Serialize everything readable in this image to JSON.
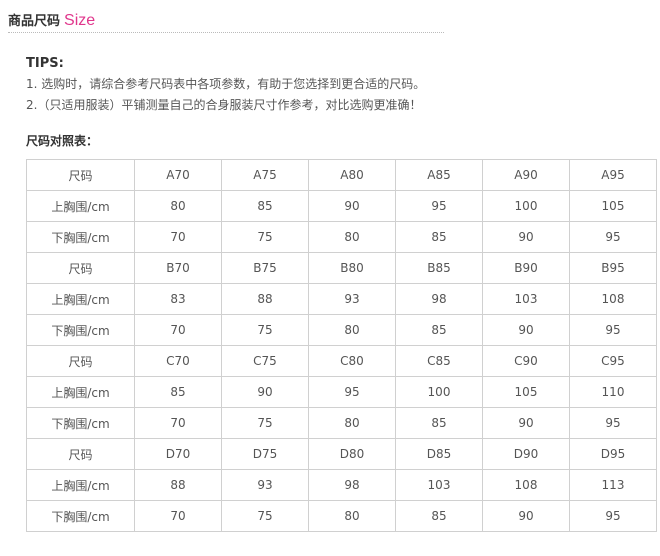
{
  "header": {
    "title_cn": "商品尺码",
    "title_en": "Size",
    "accent": "#e0368c"
  },
  "tips": {
    "title": "TIPS:",
    "lines": [
      "1. 选购时，请综合参考尺码表中各项参数，有助于您选择到更合适的尺码。",
      "2.（只适用服装）平铺测量自己的合身服装尺寸作参考，对比选购更准确！"
    ]
  },
  "table_title": "尺码对照表：",
  "table": [
    [
      "尺码",
      "A70",
      "A75",
      "A80",
      "A85",
      "A90",
      "A95"
    ],
    [
      "上胸围/cm",
      "80",
      "85",
      "90",
      "95",
      "100",
      "105"
    ],
    [
      "下胸围/cm",
      "70",
      "75",
      "80",
      "85",
      "90",
      "95"
    ],
    [
      "尺码",
      "B70",
      "B75",
      "B80",
      "B85",
      "B90",
      "B95"
    ],
    [
      "上胸围/cm",
      "83",
      "88",
      "93",
      "98",
      "103",
      "108"
    ],
    [
      "下胸围/cm",
      "70",
      "75",
      "80",
      "85",
      "90",
      "95"
    ],
    [
      "尺码",
      "C70",
      "C75",
      "C80",
      "C85",
      "C90",
      "C95"
    ],
    [
      "上胸围/cm",
      "85",
      "90",
      "95",
      "100",
      "105",
      "110"
    ],
    [
      "下胸围/cm",
      "70",
      "75",
      "80",
      "85",
      "90",
      "95"
    ],
    [
      "尺码",
      "D70",
      "D75",
      "D80",
      "D85",
      "D90",
      "D95"
    ],
    [
      "上胸围/cm",
      "88",
      "93",
      "98",
      "103",
      "108",
      "113"
    ],
    [
      "下胸围/cm",
      "70",
      "75",
      "80",
      "85",
      "90",
      "95"
    ]
  ]
}
